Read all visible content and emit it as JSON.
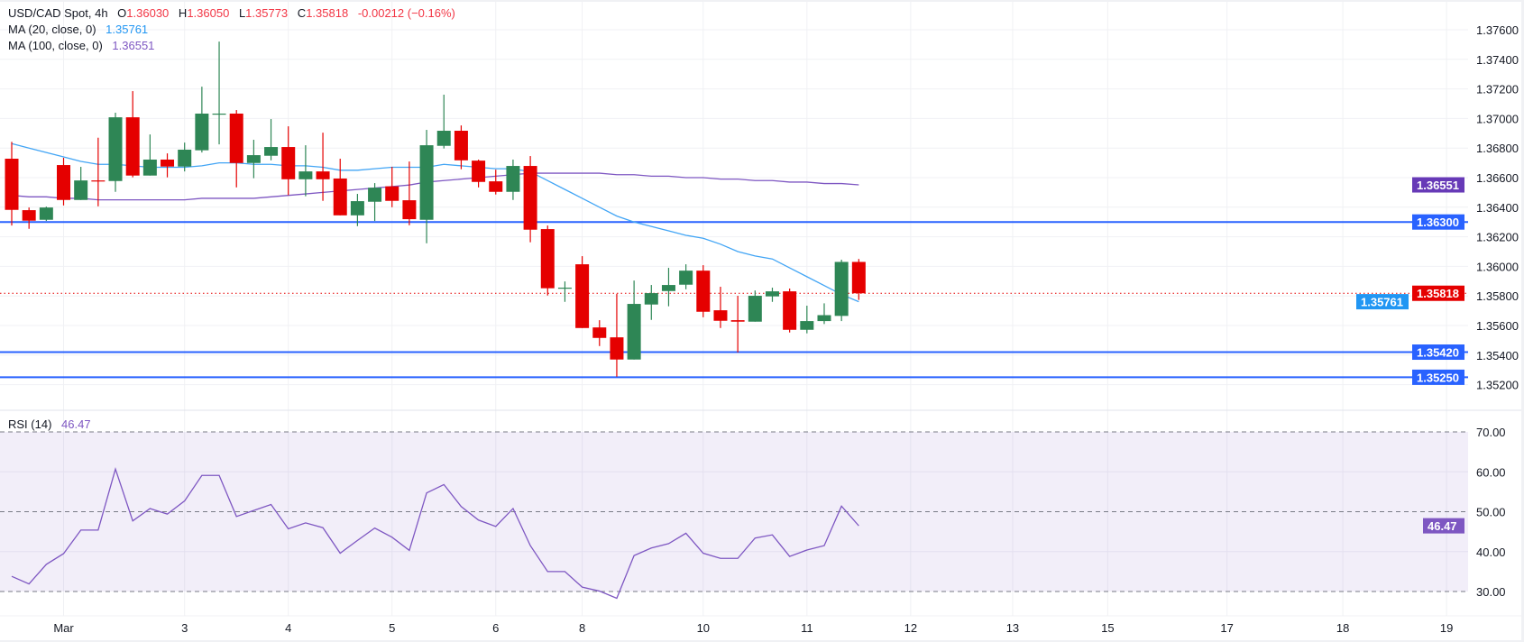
{
  "legend": {
    "symbol": "USD/CAD Spot, 4h",
    "open_label": "O",
    "open": "1.36030",
    "high_label": "H",
    "high": "1.36050",
    "low_label": "L",
    "low": "1.35773",
    "close_label": "C",
    "close": "1.35818",
    "change": "-0.00212 (−0.16%)",
    "ma20_label": "MA (20, close, 0)",
    "ma20_value": "1.35761",
    "ma100_label": "MA (100, close, 0)",
    "ma100_value": "1.36551"
  },
  "rsi_legend": {
    "label": "RSI (14)",
    "value": "46.47"
  },
  "colors": {
    "up": "#2e8655",
    "down": "#e50000",
    "ma20": "#42a5f5",
    "ma100": "#7e57c2",
    "level_line": "#2962ff",
    "last_price": "#e50000",
    "rsi_line": "#7e57c2",
    "rsi_band": "#7e57c2",
    "grid": "#f0f1f4"
  },
  "chart_data": {
    "type": "candlestick",
    "price_ticks": [
      "1.37600",
      "1.37400",
      "1.37200",
      "1.37000",
      "1.36800",
      "1.36600",
      "1.36400",
      "1.36200",
      "1.36000",
      "1.35800",
      "1.35600",
      "1.35400",
      "1.35200"
    ],
    "price_range": [
      1.351,
      1.3775
    ],
    "x_ticks": [
      {
        "label": "Mar",
        "bar": 4
      },
      {
        "label": "3",
        "bar": 11
      },
      {
        "label": "4",
        "bar": 17
      },
      {
        "label": "5",
        "bar": 23
      },
      {
        "label": "6",
        "bar": 29
      },
      {
        "label": "8",
        "bar": 34
      },
      {
        "label": "10",
        "bar": 41
      },
      {
        "label": "11",
        "bar": 47
      },
      {
        "label": "12",
        "bar": 53
      },
      {
        "label": "13",
        "bar": 58.9
      },
      {
        "label": "15",
        "bar": 64.4
      },
      {
        "label": "17",
        "bar": 71.3
      },
      {
        "label": "18",
        "bar": 78
      },
      {
        "label": "19",
        "bar": 84
      }
    ],
    "ohlc": [
      [
        1.36728,
        1.36842,
        1.36276,
        1.36382
      ],
      [
        1.3638,
        1.36398,
        1.36254,
        1.36309
      ],
      [
        1.36315,
        1.36404,
        1.36307,
        1.36398
      ],
      [
        1.36685,
        1.36734,
        1.36412,
        1.36449
      ],
      [
        1.36449,
        1.36673,
        1.36449,
        1.36581
      ],
      [
        1.36581,
        1.3687,
        1.36406,
        1.36577
      ],
      [
        1.36577,
        1.37039,
        1.36504,
        1.37008
      ],
      [
        1.37008,
        1.37185,
        1.36602,
        1.36614
      ],
      [
        1.36614,
        1.36892,
        1.36614,
        1.36722
      ],
      [
        1.36722,
        1.36764,
        1.36602,
        1.36675
      ],
      [
        1.36675,
        1.36837,
        1.36642,
        1.36789
      ],
      [
        1.36785,
        1.37215,
        1.3677,
        1.37033
      ],
      [
        1.37028,
        1.3752,
        1.36825,
        1.37033
      ],
      [
        1.37033,
        1.37057,
        1.36534,
        1.36699
      ],
      [
        1.36699,
        1.36856,
        1.36596,
        1.36752
      ],
      [
        1.36748,
        1.36996,
        1.36717,
        1.36807
      ],
      [
        1.36807,
        1.36947,
        1.36482,
        1.36589
      ],
      [
        1.36589,
        1.36819,
        1.36474,
        1.36642
      ],
      [
        1.36642,
        1.36904,
        1.36443,
        1.36589
      ],
      [
        1.36594,
        1.36728,
        1.36345,
        1.36345
      ],
      [
        1.36345,
        1.3649,
        1.36272,
        1.36441
      ],
      [
        1.36437,
        1.36563,
        1.36307,
        1.36532
      ],
      [
        1.36541,
        1.36673,
        1.364,
        1.36443
      ],
      [
        1.36447,
        1.36709,
        1.36278,
        1.36319
      ],
      [
        1.36315,
        1.36923,
        1.36156,
        1.36819
      ],
      [
        1.36815,
        1.37161,
        1.36797,
        1.36917
      ],
      [
        1.36917,
        1.36953,
        1.36657,
        1.36717
      ],
      [
        1.36715,
        1.36722,
        1.36534,
        1.36571
      ],
      [
        1.36575,
        1.36654,
        1.36486,
        1.36504
      ],
      [
        1.36504,
        1.36722,
        1.36449,
        1.36679
      ],
      [
        1.36679,
        1.36746,
        1.36163,
        1.36248
      ],
      [
        1.36252,
        1.36276,
        1.35803,
        1.35852
      ],
      [
        1.35852,
        1.35898,
        1.3576,
        1.35856
      ],
      [
        1.36014,
        1.36069,
        1.35583,
        1.35583
      ],
      [
        1.35587,
        1.35636,
        1.35461,
        1.35516
      ],
      [
        1.3552,
        1.35815,
        1.35254,
        1.3537
      ],
      [
        1.3537,
        1.35904,
        1.3537,
        1.35746
      ],
      [
        1.35742,
        1.35874,
        1.35638,
        1.35819
      ],
      [
        1.35833,
        1.3599,
        1.3573,
        1.35874
      ],
      [
        1.35876,
        1.36014,
        1.35845,
        1.35971
      ],
      [
        1.35971,
        1.36008,
        1.35656,
        1.35693
      ],
      [
        1.35703,
        1.35862,
        1.35583,
        1.35632
      ],
      [
        1.35636,
        1.35801,
        1.35418,
        1.35626
      ],
      [
        1.35626,
        1.35837,
        1.35626,
        1.35801
      ],
      [
        1.35797,
        1.35856,
        1.3576,
        1.35831
      ],
      [
        1.35831,
        1.3585,
        1.35553,
        1.35571
      ],
      [
        1.35571,
        1.35734,
        1.35547,
        1.3563
      ],
      [
        1.3563,
        1.3575,
        1.3561,
        1.3567
      ],
      [
        1.35665,
        1.36045,
        1.3563,
        1.3603
      ],
      [
        1.3603,
        1.3605,
        1.35773,
        1.35818
      ]
    ],
    "ma20": [
      1.3683,
      1.368,
      1.3677,
      1.3674,
      1.3671,
      1.3669,
      1.3669,
      1.3668,
      1.3667,
      1.3667,
      1.3667,
      1.3668,
      1.367,
      1.367,
      1.3669,
      1.3669,
      1.3668,
      1.3668,
      1.3667,
      1.3665,
      1.3665,
      1.3666,
      1.3667,
      1.3667,
      1.3667,
      1.3669,
      1.3668,
      1.3667,
      1.3666,
      1.3666,
      1.3664,
      1.3658,
      1.3652,
      1.3646,
      1.364,
      1.3634,
      1.363,
      1.3627,
      1.3624,
      1.3621,
      1.3619,
      1.3615,
      1.361,
      1.3607,
      1.3605,
      1.3599,
      1.3593,
      1.3587,
      1.3581,
      1.35761
    ],
    "ma100": [
      1.3648,
      1.3647,
      1.3647,
      1.3646,
      1.3646,
      1.3645,
      1.3645,
      1.3645,
      1.3645,
      1.3645,
      1.3645,
      1.3646,
      1.3646,
      1.3646,
      1.3646,
      1.3647,
      1.3648,
      1.3649,
      1.365,
      1.3651,
      1.3652,
      1.3653,
      1.3654,
      1.3655,
      1.3657,
      1.3658,
      1.3659,
      1.366,
      1.3661,
      1.3662,
      1.3663,
      1.3663,
      1.3663,
      1.3663,
      1.3663,
      1.3662,
      1.3662,
      1.3661,
      1.3661,
      1.366,
      1.366,
      1.3659,
      1.3659,
      1.3658,
      1.3658,
      1.3657,
      1.3657,
      1.3656,
      1.3656,
      1.36551
    ],
    "levels": [
      1.363,
      1.3542,
      1.3525
    ],
    "last_price": 1.35818,
    "price_badges": [
      {
        "text": "1.36551",
        "value": 1.36551,
        "color": "#673ab7"
      },
      {
        "text": "1.36300",
        "value": 1.363,
        "color": "#2962ff"
      },
      {
        "text": "1.35818",
        "value": 1.35818,
        "color": "#e50000"
      },
      {
        "text": "1.35761",
        "value": 1.35761,
        "color": "#2196f3"
      },
      {
        "text": "1.35420",
        "value": 1.3542,
        "color": "#2962ff"
      },
      {
        "text": "1.35250",
        "value": 1.3525,
        "color": "#2962ff"
      }
    ],
    "rsi": {
      "ticks": [
        "70.00",
        "60.00",
        "50.00",
        "40.00",
        "30.00"
      ],
      "band": [
        30,
        70
      ],
      "dashed": [
        70,
        50,
        30
      ],
      "badge": {
        "text": "46.47",
        "value": 46.47,
        "color": "#7e57c2"
      },
      "values": [
        33.8,
        31.9,
        36.8,
        39.5,
        45.4,
        45.4,
        60.7,
        47.7,
        50.8,
        49.4,
        52.7,
        59.1,
        59.1,
        48.8,
        50.3,
        51.8,
        45.7,
        47.2,
        46.0,
        39.6,
        42.8,
        45.9,
        43.6,
        40.3,
        54.7,
        56.8,
        51.3,
        47.9,
        46.3,
        50.8,
        41.5,
        35.0,
        35.0,
        31.1,
        30.1,
        28.3,
        39.0,
        40.9,
        42.0,
        44.6,
        39.6,
        38.3,
        38.3,
        43.4,
        44.2,
        38.8,
        40.4,
        41.5,
        51.4,
        46.47
      ]
    }
  }
}
